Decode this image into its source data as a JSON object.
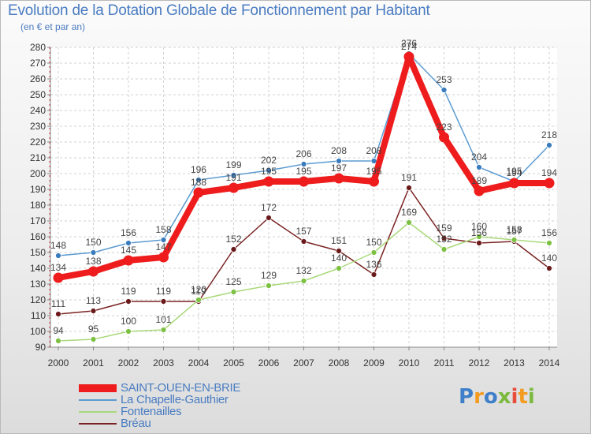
{
  "header": {
    "title": "Evolution de la Dotation Globale de Fonctionnement par Habitant",
    "subtitle": "(en € et par an)"
  },
  "logo": {
    "text": "Proxiti"
  },
  "chart_data": {
    "type": "line",
    "title": "Evolution de la Dotation Globale de Fonctionnement par Habitant",
    "subtitle": "(en € et par an)",
    "xlabel": "",
    "ylabel": "",
    "x": [
      "2000",
      "2001",
      "2002",
      "2003",
      "2004",
      "2005",
      "2006",
      "2007",
      "2008",
      "2009",
      "2010",
      "2011",
      "2012",
      "2013",
      "2014"
    ],
    "ylim": [
      90,
      280
    ],
    "yticks": [
      90,
      100,
      110,
      120,
      130,
      140,
      150,
      160,
      170,
      180,
      190,
      200,
      210,
      220,
      230,
      240,
      250,
      260,
      270,
      280
    ],
    "grid": true,
    "legend_position": "bottom-left",
    "series": [
      {
        "name": "SAINT-OUEN-EN-BRIE",
        "color": "#ee1c1c",
        "values": [
          134,
          138,
          145,
          147,
          188,
          191,
          195,
          195,
          197,
          195,
          274,
          223,
          189,
          194,
          194
        ]
      },
      {
        "name": "La Chapelle-Gauthier",
        "color": "#5c9bd1",
        "values": [
          148,
          150,
          156,
          158,
          196,
          199,
          202,
          206,
          208,
          208,
          276,
          253,
          204,
          195,
          218
        ]
      },
      {
        "name": "Fontenailles",
        "color": "#a9d97a",
        "values": [
          94,
          95,
          100,
          101,
          120,
          125,
          129,
          132,
          140,
          150,
          169,
          152,
          160,
          158,
          156
        ]
      },
      {
        "name": "Bréau",
        "color": "#7b2323",
        "values": [
          111,
          113,
          119,
          119,
          119,
          152,
          172,
          157,
          151,
          136,
          191,
          159,
          156,
          157,
          140
        ]
      }
    ]
  }
}
